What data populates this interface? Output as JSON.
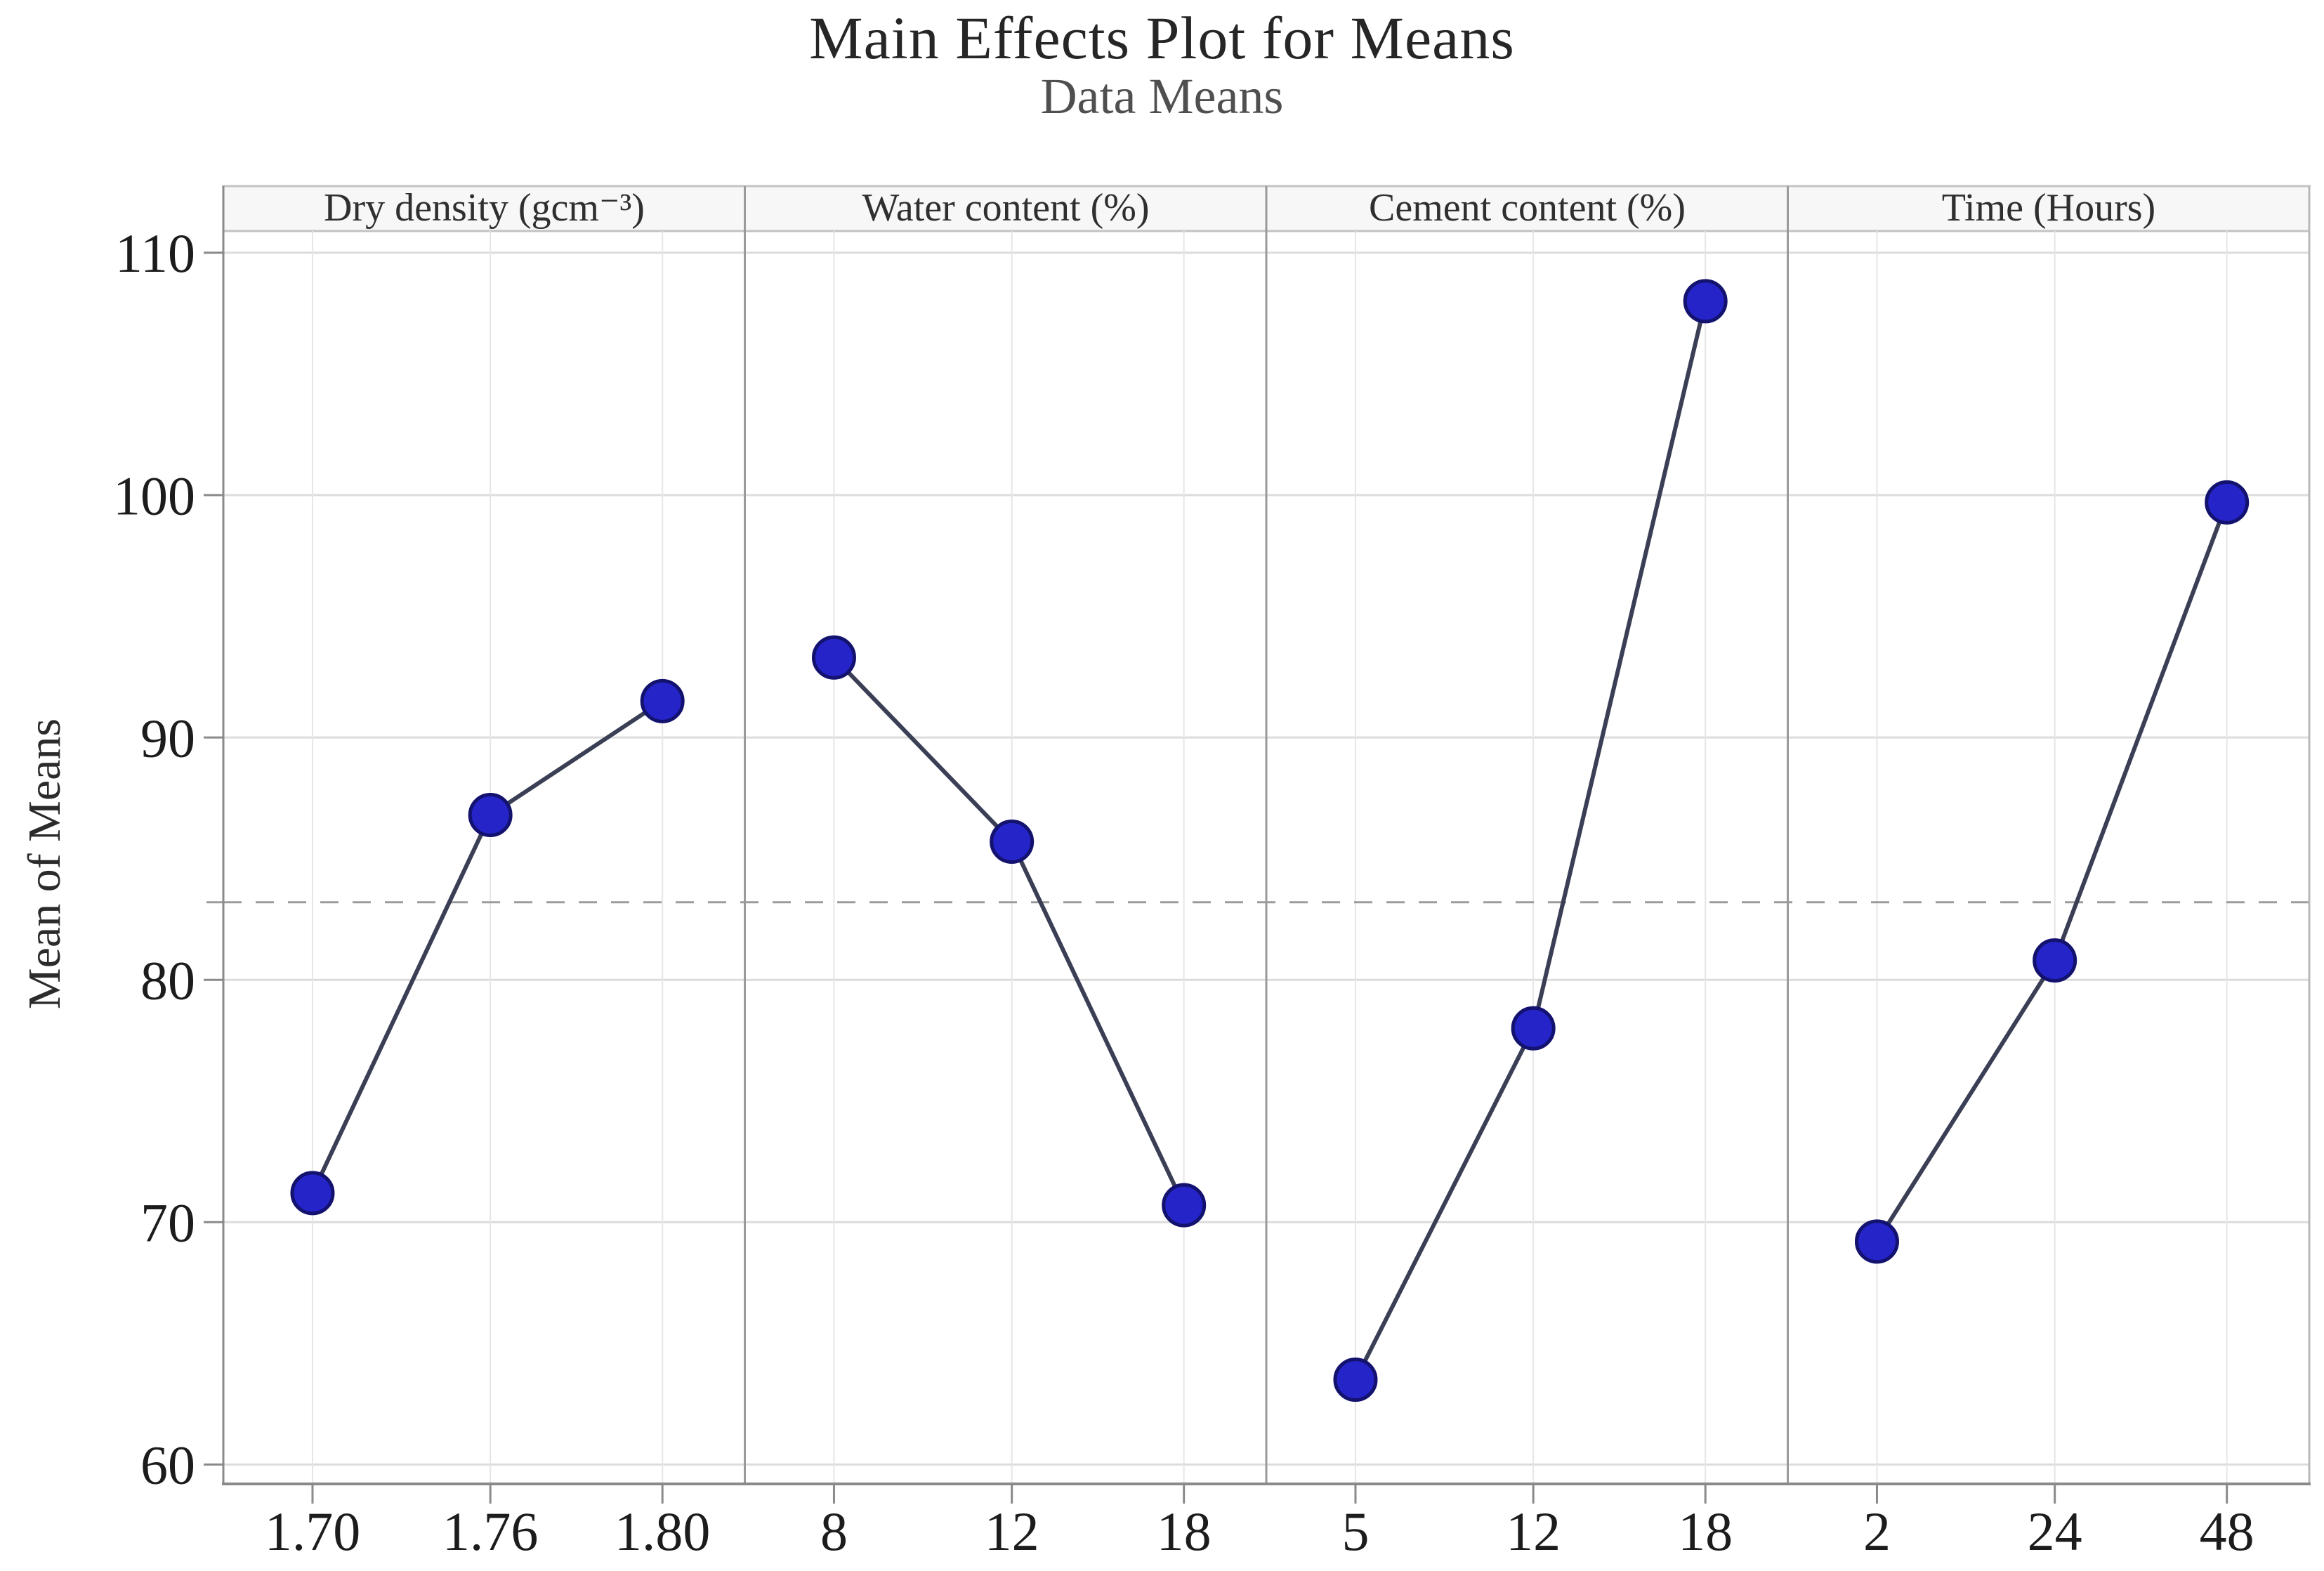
{
  "chart_data": {
    "type": "line",
    "title": "Main Effects Plot for Means",
    "subtitle": "Data Means",
    "ylabel": "Mean of Means",
    "ylim": [
      59.2,
      112.75
    ],
    "yticks": [
      60,
      70,
      80,
      90,
      100,
      110
    ],
    "reference_line": 83.2,
    "grid": "on",
    "legend_position": "none",
    "panels": [
      {
        "label": "Dry density (gcm⁻³)",
        "categories": [
          "1.70",
          "1.76",
          "1.80"
        ],
        "values": [
          71.2,
          86.8,
          91.5
        ]
      },
      {
        "label": "Water content (%)",
        "categories": [
          "8",
          "12",
          "18"
        ],
        "values": [
          93.3,
          85.7,
          70.7
        ]
      },
      {
        "label": "Cement content (%)",
        "categories": [
          "5",
          "12",
          "18"
        ],
        "values": [
          63.5,
          78.0,
          108.0
        ]
      },
      {
        "label": "Time (Hours)",
        "categories": [
          "2",
          "24",
          "48"
        ],
        "values": [
          69.2,
          80.8,
          99.7
        ]
      }
    ],
    "colors": {
      "marker": "#2424c8",
      "marker_edge": "#13126e",
      "series_line": "#3b3f55",
      "grid_line": "#dcdcdc",
      "category_grid_line": "#e6e6e6",
      "reference_line_color": "#9b9b9b",
      "axis": "#8a8a8a",
      "separator": "#9a9a9a",
      "right_border": "#b8b8b8",
      "header_bg": "#f7f7f7",
      "header_rule": "#c3c3c3"
    }
  }
}
